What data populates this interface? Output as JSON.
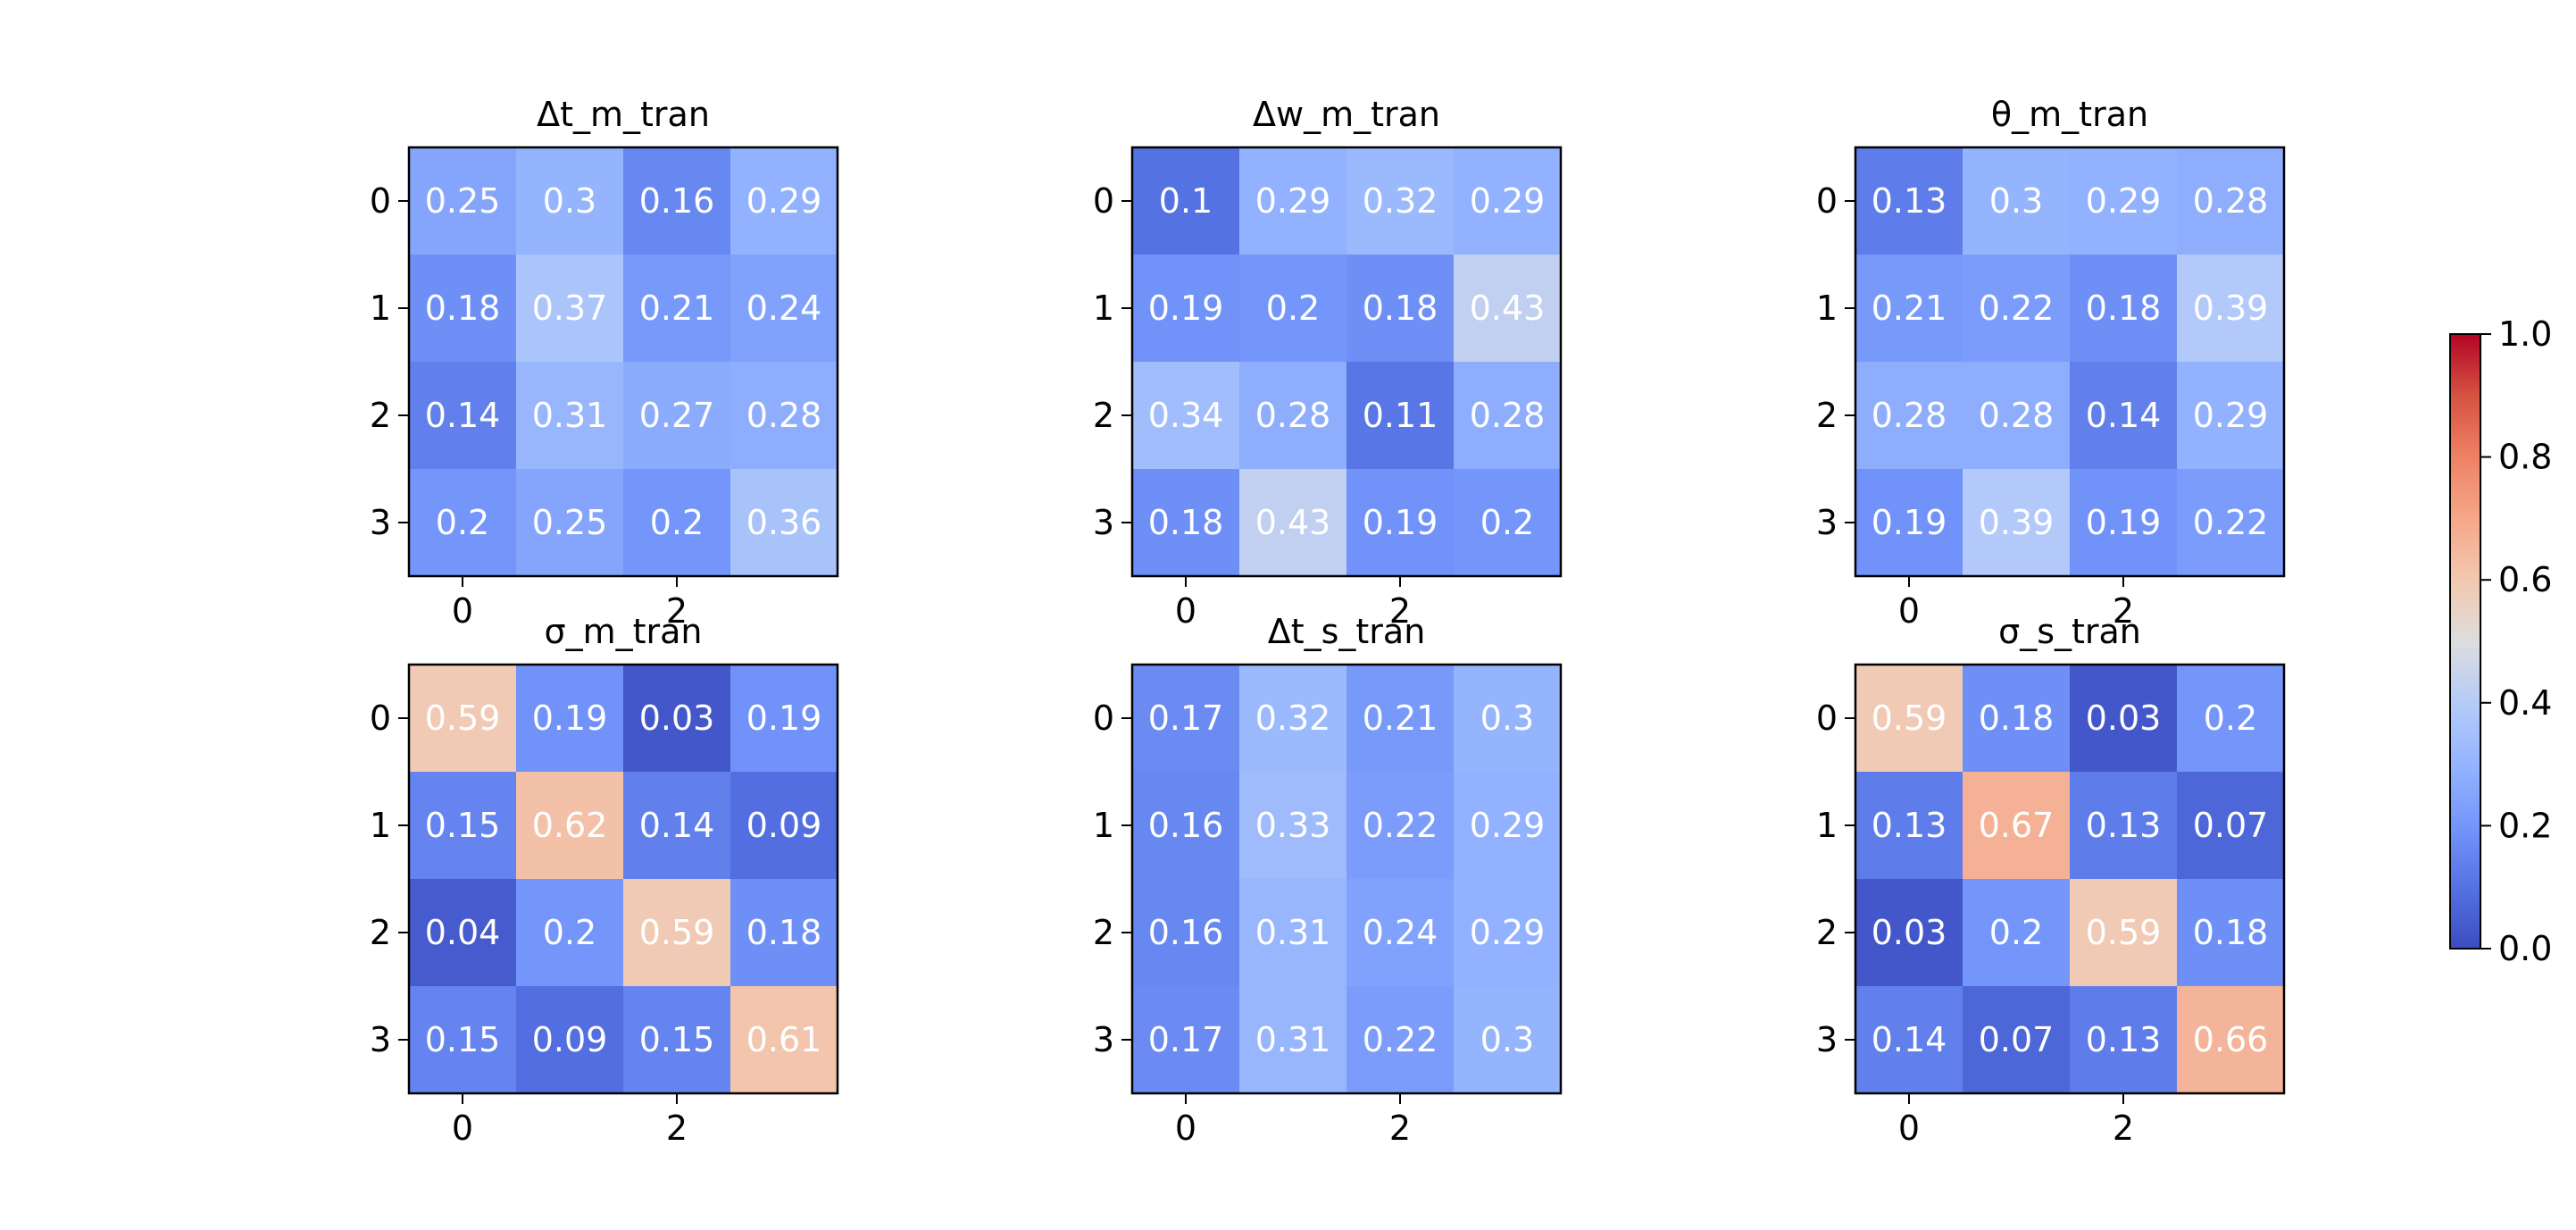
{
  "chart_data": [
    {
      "type": "heatmap",
      "title": "Δt_m_tran",
      "xticks": [
        0,
        2
      ],
      "yticks": [
        0,
        1,
        2,
        3
      ],
      "values": [
        [
          0.25,
          0.3,
          0.16,
          0.29
        ],
        [
          0.18,
          0.37,
          0.21,
          0.24
        ],
        [
          0.14,
          0.31,
          0.27,
          0.28
        ],
        [
          0.2,
          0.25,
          0.2,
          0.36
        ]
      ]
    },
    {
      "type": "heatmap",
      "title": "Δw_m_tran",
      "xticks": [
        0,
        2
      ],
      "yticks": [
        0,
        1,
        2,
        3
      ],
      "values": [
        [
          0.1,
          0.29,
          0.32,
          0.29
        ],
        [
          0.19,
          0.2,
          0.18,
          0.43
        ],
        [
          0.34,
          0.28,
          0.11,
          0.28
        ],
        [
          0.18,
          0.43,
          0.19,
          0.2
        ]
      ]
    },
    {
      "type": "heatmap",
      "title": "θ_m_tran",
      "xticks": [
        0,
        2
      ],
      "yticks": [
        0,
        1,
        2,
        3
      ],
      "values": [
        [
          0.13,
          0.3,
          0.29,
          0.28
        ],
        [
          0.21,
          0.22,
          0.18,
          0.39
        ],
        [
          0.28,
          0.28,
          0.14,
          0.29
        ],
        [
          0.19,
          0.39,
          0.19,
          0.22
        ]
      ]
    },
    {
      "type": "heatmap",
      "title": "σ_m_tran",
      "xticks": [
        0,
        2
      ],
      "yticks": [
        0,
        1,
        2,
        3
      ],
      "values": [
        [
          0.59,
          0.19,
          0.03,
          0.19
        ],
        [
          0.15,
          0.62,
          0.14,
          0.09
        ],
        [
          0.04,
          0.2,
          0.59,
          0.18
        ],
        [
          0.15,
          0.09,
          0.15,
          0.61
        ]
      ]
    },
    {
      "type": "heatmap",
      "title": "Δt_s_tran",
      "xticks": [
        0,
        2
      ],
      "yticks": [
        0,
        1,
        2,
        3
      ],
      "values": [
        [
          0.17,
          0.32,
          0.21,
          0.3
        ],
        [
          0.16,
          0.33,
          0.22,
          0.29
        ],
        [
          0.16,
          0.31,
          0.24,
          0.29
        ],
        [
          0.17,
          0.31,
          0.22,
          0.3
        ]
      ]
    },
    {
      "type": "heatmap",
      "title": "σ_s_tran",
      "xticks": [
        0,
        2
      ],
      "yticks": [
        0,
        1,
        2,
        3
      ],
      "values": [
        [
          0.59,
          0.18,
          0.03,
          0.2
        ],
        [
          0.13,
          0.67,
          0.13,
          0.07
        ],
        [
          0.03,
          0.2,
          0.59,
          0.18
        ],
        [
          0.14,
          0.07,
          0.13,
          0.66
        ]
      ]
    }
  ],
  "colorbar": {
    "colormap": "coolwarm",
    "range": [
      0.0,
      1.0
    ],
    "tick_labels": [
      "0.0",
      "0.2",
      "0.4",
      "0.6",
      "0.8",
      "1.0"
    ]
  },
  "colors": {
    "axis": "#000000",
    "cell_text": "#ffffff",
    "cmap_low": "#3b4cc0",
    "cmap_mid": "#dddddd",
    "cmap_high": "#b40426"
  }
}
